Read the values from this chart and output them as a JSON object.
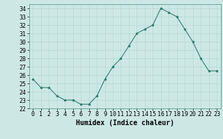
{
  "x": [
    0,
    1,
    2,
    3,
    4,
    5,
    6,
    7,
    8,
    9,
    10,
    11,
    12,
    13,
    14,
    15,
    16,
    17,
    18,
    19,
    20,
    21,
    22,
    23
  ],
  "y": [
    25.5,
    24.5,
    24.5,
    23.5,
    23.0,
    23.0,
    22.5,
    22.5,
    23.5,
    25.5,
    27.0,
    28.0,
    29.5,
    31.0,
    31.5,
    32.0,
    34.0,
    33.5,
    33.0,
    31.5,
    30.0,
    28.0,
    26.5,
    26.5
  ],
  "title": "",
  "xlabel": "Humidex (Indice chaleur)",
  "ylabel": "",
  "ylim": [
    22,
    34.5
  ],
  "yticks": [
    22,
    23,
    24,
    25,
    26,
    27,
    28,
    29,
    30,
    31,
    32,
    33,
    34
  ],
  "xticks": [
    0,
    1,
    2,
    3,
    4,
    5,
    6,
    7,
    8,
    9,
    10,
    11,
    12,
    13,
    14,
    15,
    16,
    17,
    18,
    19,
    20,
    21,
    22,
    23
  ],
  "line_color": "#2e7d6e",
  "marker_color": "#2e7d6e",
  "bg_color": "#cde8e4",
  "grid_color": "#afd4cf",
  "plot_bg": "#cde8e4",
  "xlabel_fontsize": 7,
  "tick_fontsize": 6
}
